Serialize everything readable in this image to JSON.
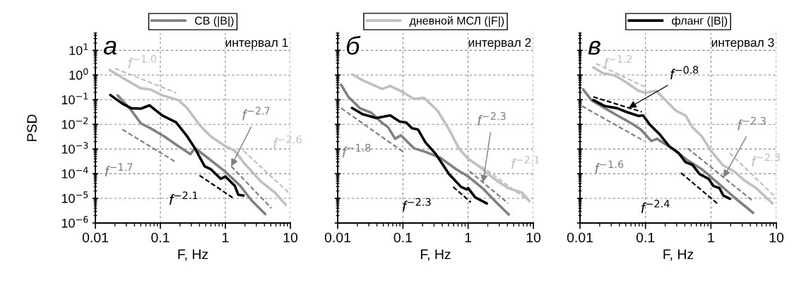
{
  "chart_data": [
    {
      "type": "line",
      "title": "а",
      "subtitle": "интервал 1",
      "xlabel": "F, Hz",
      "ylabel": "PSD",
      "log": "xy",
      "grid": true,
      "legend": "top",
      "xlim": [
        0.01,
        10
      ],
      "xticks": [
        0.01,
        0.1,
        1,
        10
      ],
      "ylim": [
        1e-06,
        50
      ],
      "yticks": [
        {
          "value": 1e-06,
          "label": "10$^{−6}$"
        },
        {
          "value": 1e-05,
          "label": "10$^{−5}$"
        },
        {
          "value": 0.0001,
          "label": "10$^{−4}$"
        },
        {
          "value": 0.001,
          "label": "10$^{−3}$"
        },
        {
          "value": 0.01,
          "label": "10$^{−2}$"
        },
        {
          "value": 0.1,
          "label": "10$^{−1}$"
        },
        {
          "value": 1,
          "label": "10$^{0}$"
        },
        {
          "value": 10,
          "label": "10$^{1}$"
        }
      ],
      "series": [
        {
          "color": "#c0c0c0",
          "x": [
            0.0166,
            0.026,
            0.05,
            0.07,
            0.107,
            0.19,
            0.26,
            0.4,
            0.6,
            1,
            1.4,
            1.9,
            3.5,
            5.8,
            8.5
          ],
          "values": [
            1.6,
            0.78,
            0.29,
            0.26,
            0.15,
            0.096,
            0.045,
            0.0095,
            0.0032,
            0.0013,
            0.00085,
            0.00029,
            4.9e-05,
            1.7e-05,
            5.5e-06
          ]
        },
        {
          "name": "СВ (|B|)",
          "color": "#808080",
          "x": [
            0.022,
            0.036,
            0.05,
            0.071,
            0.116,
            0.19,
            0.29,
            0.34,
            0.48,
            1,
            1.7,
            2.5,
            4.1
          ],
          "values": [
            0.15,
            0.036,
            0.011,
            0.0069,
            0.0032,
            0.0013,
            0.00062,
            0.0011,
            0.00055,
            0.00012,
            3.2e-05,
            8.5e-06,
            2.3e-06
          ]
        },
        {
          "color": "#000000",
          "x": [
            0.017,
            0.026,
            0.036,
            0.05,
            0.068,
            0.107,
            0.175,
            0.26,
            0.34,
            0.48,
            0.6,
            0.85,
            1,
            1.4,
            1.58,
            1.9
          ],
          "values": [
            0.155,
            0.069,
            0.045,
            0.043,
            0.059,
            0.023,
            0.012,
            0.0032,
            0.00107,
            0.0002,
            0.00015,
            6.2e-05,
            7.7e-05,
            3.2e-05,
            1.4e-05,
            1.3e-05
          ]
        },
        {
          "name": "f$^{−1.0}$",
          "color": "#c0c0c0",
          "line_style": "dashed",
          "x": [
            0.02,
            0.175
          ],
          "values": [
            1.85,
            0.19
          ]
        },
        {
          "name": "f$^{−1.7}$",
          "color": "#808080",
          "line_style": "dashed",
          "x": [
            0.026,
            0.175
          ],
          "values": [
            0.0062,
            0.00029
          ]
        },
        {
          "name": "f$^{−2.7}$",
          "color": "#808080",
          "line_style": "dashed",
          "x": [
            1.23,
            5.1
          ],
          "values": [
            0.0002,
            4e-06
          ]
        },
        {
          "name": "f$^{−2.6}$",
          "color": "#c0c0c0",
          "line_style": "dashed",
          "x": [
            1.9,
            9.9
          ],
          "values": [
            0.00085,
            1.5e-05
          ]
        },
        {
          "name": "f$^{−2.1}$",
          "color": "#000000",
          "line_style": "dashed",
          "x": [
            0.4,
            1.29
          ],
          "values": [
            8.5e-05,
            1.07e-05
          ]
        }
      ]
    },
    {
      "type": "line",
      "title": "б",
      "subtitle": "интервал 2",
      "xlabel": "F, Hz",
      "log": "xy",
      "grid": true,
      "legend": "top",
      "tick_labels": "x",
      "xlim": [
        0.01,
        10
      ],
      "xticks": [
        0.01,
        0.1,
        1,
        10
      ],
      "ylim": [
        1e-06,
        50
      ],
      "yticks": [
        1e-06,
        1e-05,
        0.0001,
        0.001,
        0.01,
        0.1,
        1,
        10
      ],
      "series": [
        {
          "name": "дневной МСЛ (|F|)",
          "color": "#c0c0c0",
          "x": [
            0.0166,
            0.024,
            0.048,
            0.064,
            0.097,
            0.148,
            0.21,
            0.34,
            0.51,
            0.72,
            1,
            1.5,
            2.5,
            4.1,
            6.7,
            8.7
          ],
          "values": [
            1.07,
            0.62,
            0.27,
            0.36,
            0.21,
            0.107,
            0.12,
            0.036,
            0.0062,
            0.00107,
            0.0004,
            0.00019,
            6.2e-05,
            2.6e-05,
            1.7e-05,
            7.7e-06
          ]
        },
        {
          "color": "#808080",
          "x": [
            0.0113,
            0.0145,
            0.022,
            0.033,
            0.047,
            0.059,
            0.076,
            0.093,
            0.148,
            0.22,
            0.37,
            0.66,
            1,
            1.66,
            2.7,
            4.2
          ],
          "values": [
            0.4,
            0.133,
            0.045,
            0.029,
            0.012,
            0.0077,
            0.0026,
            0.0036,
            0.00107,
            0.00077,
            0.00045,
            0.00015,
            7.7e-05,
            2.6e-05,
            6.9e-06,
            2.2e-06
          ]
        },
        {
          "color": "#000000",
          "x": [
            0.0166,
            0.024,
            0.039,
            0.064,
            0.089,
            0.112,
            0.138,
            0.17,
            0.22,
            0.32,
            0.51,
            0.78,
            0.95,
            1,
            1.28,
            1.94
          ],
          "values": [
            0.046,
            0.026,
            0.018,
            0.023,
            0.013,
            0.012,
            0.0069,
            0.0062,
            0.0019,
            0.00062,
            9.6e-05,
            2.9e-05,
            2.3e-05,
            2.6e-05,
            1.1e-05,
            6.2e-06
          ]
        },
        {
          "name": "f$^{−1.8}$",
          "color": "#808080",
          "line_style": "dashed",
          "x": [
            0.0113,
            0.107
          ],
          "values": [
            0.045,
            0.00069
          ]
        },
        {
          "name": "f$^{−2.3}$",
          "color": "#000000",
          "line_style": "dashed",
          "x": [
            0.59,
            1.1
          ],
          "values": [
            2.9e-05,
            6.9e-06
          ]
        },
        {
          "name": "f$^{−2.3}$",
          "color": "#808080",
          "line_style": "dashed",
          "x": [
            1.05,
            4.1
          ],
          "values": [
            0.000126,
            6.3e-06
          ]
        },
        {
          "name": "f$^{−2.1}$",
          "color": "#c0c0c0",
          "line_style": "dashed",
          "x": [
            1.6,
            8.5
          ],
          "values": [
            0.0002,
            8e-06
          ]
        }
      ]
    },
    {
      "type": "line",
      "title": "в",
      "subtitle": "интервал 3",
      "xlabel": "F, Hz",
      "log": "xy",
      "grid": true,
      "legend": "top",
      "tick_labels": "x",
      "xlim": [
        0.01,
        10
      ],
      "xticks": [
        0.01,
        0.1,
        1,
        10
      ],
      "ylim": [
        1e-06,
        50
      ],
      "yticks": [
        1e-06,
        1e-05,
        0.0001,
        0.001,
        0.01,
        0.1,
        1,
        10
      ],
      "series": [
        {
          "color": "#c0c0c0",
          "x": [
            0.016,
            0.022,
            0.034,
            0.051,
            0.078,
            0.1,
            0.145,
            0.21,
            0.29,
            0.41,
            0.52,
            0.73,
            1,
            1.5,
            2.3,
            3.2,
            4.9,
            8.7
          ],
          "values": [
            2.05,
            1.2,
            0.96,
            0.5,
            0.23,
            0.19,
            0.23,
            0.086,
            0.036,
            0.023,
            0.0077,
            0.0032,
            0.00085,
            0.00023,
            0.00012,
            5.5e-05,
            2.6e-05,
            6.2e-06
          ]
        },
        {
          "color": "#808080",
          "x": [
            0.0112,
            0.0149,
            0.024,
            0.037,
            0.061,
            0.085,
            0.123,
            0.15,
            0.27,
            0.44,
            0.73,
            1.18,
            2.3,
            4.4
          ],
          "values": [
            0.26,
            0.096,
            0.045,
            0.023,
            0.011,
            0.0062,
            0.0021,
            0.0026,
            0.00096,
            0.00035,
            0.00015,
            5e-05,
            1.07e-05,
            2.6e-06
          ]
        },
        {
          "name": "фланг (|B|)",
          "color": "#000000",
          "x": [
            0.016,
            0.024,
            0.037,
            0.051,
            0.078,
            0.092,
            0.117,
            0.164,
            0.23,
            0.32,
            0.41,
            0.52,
            0.67,
            0.92,
            1.09,
            1.35,
            1.55,
            1.95
          ],
          "values": [
            0.096,
            0.055,
            0.045,
            0.032,
            0.022,
            0.023,
            0.0096,
            0.004,
            0.0013,
            0.00069,
            0.00029,
            0.00023,
            9.6e-05,
            6.2e-05,
            3.2e-05,
            2.6e-05,
            1.3e-05,
            9.6e-06
          ]
        },
        {
          "name": "f$^{−1.2}$",
          "color": "#c0c0c0",
          "line_style": "dashed",
          "x": [
            0.0176,
            0.1
          ],
          "values": [
            2.9,
            0.32
          ]
        },
        {
          "name": "f$^{−0.8}$",
          "color": "#000000",
          "line_style": "dashed",
          "x": [
            0.016,
            0.088
          ],
          "values": [
            0.13,
            0.032
          ]
        },
        {
          "name": "f$^{−1.6}$",
          "color": "#808080",
          "line_style": "dashed",
          "x": [
            0.0107,
            0.096
          ],
          "values": [
            0.055,
            0.0021
          ]
        },
        {
          "name": "f$^{−2.3}$",
          "color": "#808080",
          "line_style": "dashed",
          "x": [
            0.44,
            4.2
          ],
          "values": [
            0.00107,
            8.5e-06
          ]
        },
        {
          "name": "f$^{−2.3}$",
          "color": "#c0c0c0",
          "line_style": "dashed",
          "x": [
            1.94,
            9.8
          ],
          "values": [
            0.00069,
            1.07e-05
          ]
        },
        {
          "name": "f$^{−2.4}$",
          "color": "#000000",
          "line_style": "dashed",
          "x": [
            0.35,
            1.32
          ],
          "values": [
            0.000107,
            5.5e-06
          ]
        }
      ]
    }
  ]
}
